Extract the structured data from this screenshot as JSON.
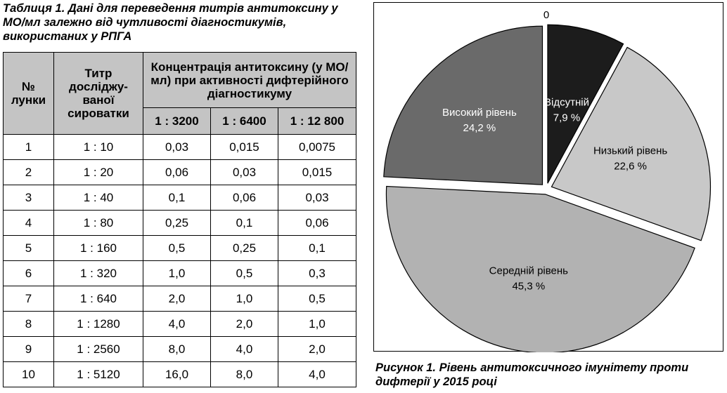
{
  "table": {
    "caption_label": "Таблиця 1.",
    "caption_text": "Дані для переведення титрів антитоксину у МО/мл залежно від чутливості діагностикумів, використаних у РПГА",
    "headers": {
      "well": "№ лунки",
      "titer": "Титр досліджу-ваної сироватки",
      "concentration": "Концентрація антитоксину (у МО/мл) при активності дифтерійного діагностикуму",
      "activities": [
        "1 : 3200",
        "1 : 6400",
        "1 : 12 800"
      ]
    },
    "rows": [
      [
        "1",
        "1 : 10",
        "0,03",
        "0,015",
        "0,0075"
      ],
      [
        "2",
        "1 : 20",
        "0,06",
        "0,03",
        "0,015"
      ],
      [
        "3",
        "1 : 40",
        "0,1",
        "0,06",
        "0,03"
      ],
      [
        "4",
        "1 : 80",
        "0,25",
        "0,1",
        "0,06"
      ],
      [
        "5",
        "1 : 160",
        "0,5",
        "0,25",
        "0,1"
      ],
      [
        "6",
        "1 : 320",
        "1,0",
        "0,5",
        "0,3"
      ],
      [
        "7",
        "1 : 640",
        "2,0",
        "1,0",
        "0,5"
      ],
      [
        "8",
        "1 : 1280",
        "4,0",
        "2,0",
        "1,0"
      ],
      [
        "9",
        "1 : 2560",
        "8,0",
        "4,0",
        "2,0"
      ],
      [
        "10",
        "1 : 5120",
        "16,0",
        "8,0",
        "4,0"
      ]
    ]
  },
  "figure": {
    "caption_label": "Рисунок 1.",
    "caption_text": "Рівень антитоксичного імунітету проти дифтерії у 2015 році"
  },
  "chart_data": {
    "type": "pie",
    "zero_label": "0",
    "slices": [
      {
        "label": "Відсутній",
        "value": 7.9,
        "value_label": "7,9 %",
        "color": "#1c1c1c",
        "text_color": "#ffffff"
      },
      {
        "label": "Низький рівень",
        "value": 22.6,
        "value_label": "22,6 %",
        "color": "#c8c8c8",
        "text_color": "#000000"
      },
      {
        "label": "Середній рівень",
        "value": 45.3,
        "value_label": "45,3 %",
        "color": "#b2b2b2",
        "text_color": "#000000"
      },
      {
        "label": "Високий рівень",
        "value": 24.2,
        "value_label": "24,2 %",
        "color": "#6a6a6a",
        "text_color": "#ffffff"
      }
    ]
  }
}
